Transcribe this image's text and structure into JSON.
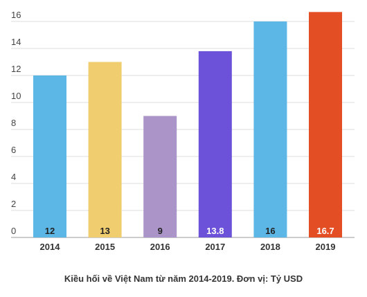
{
  "chart_data": {
    "type": "bar",
    "title": "",
    "xlabel": "",
    "ylabel": "",
    "caption": "Kiều hối về Việt Nam từ năm 2014-2019. Đơn vị: Tỷ USD",
    "categories": [
      "2014",
      "2015",
      "2016",
      "2017",
      "2018",
      "2019"
    ],
    "values": [
      12,
      13,
      9,
      13.8,
      16,
      16.7
    ],
    "value_labels": [
      "12",
      "13",
      "9",
      "13.8",
      "16",
      "16.7"
    ],
    "colors": [
      "#5db7e6",
      "#f0cd6f",
      "#ab94c8",
      "#6c52d9",
      "#5db7e6",
      "#e34e25"
    ],
    "label_colors": [
      "#222222",
      "#222222",
      "#222222",
      "#ffffff",
      "#222222",
      "#ffffff"
    ],
    "ylim": [
      0,
      17
    ],
    "yticks": [
      0,
      2,
      4,
      6,
      8,
      10,
      12,
      14,
      16
    ],
    "ytick_labels": [
      "0",
      "2",
      "4",
      "6",
      "8",
      "10",
      "12",
      "14",
      "16"
    ],
    "grid": true,
    "gridline_color": "#dddddd",
    "legend": "none"
  }
}
